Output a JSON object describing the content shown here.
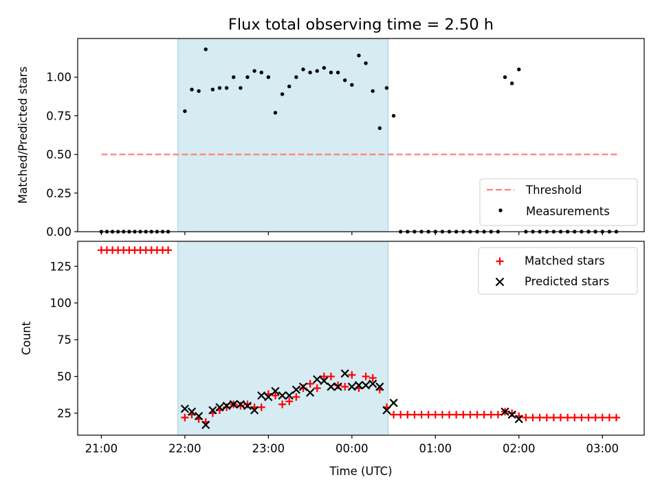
{
  "figure": {
    "title": "Flux total observing time = 2.50 h"
  },
  "chart_data": [
    {
      "type": "scatter",
      "title": "Flux total observing time = 2.50 h",
      "xlabel": "",
      "ylabel": "Matched/Predicted stars",
      "xlim": [
        "20:43",
        "03:30"
      ],
      "ylim": [
        0,
        1.25
      ],
      "yticks": [
        "0.00",
        "0.25",
        "0.50",
        "0.75",
        "1.00"
      ],
      "xticks": [
        "21:00",
        "22:00",
        "23:00",
        "00:00",
        "01:00",
        "02:00",
        "03:00"
      ],
      "shaded_interval": [
        "21:55",
        "00:26"
      ],
      "threshold": {
        "name": "Threshold",
        "value": 0.5,
        "x": [
          "21:00",
          "03:12"
        ],
        "color": "#ff7f7f",
        "style": "dashed"
      },
      "legend": {
        "placement": "lower right",
        "entries": [
          "Threshold",
          "Measurements"
        ]
      },
      "series": [
        {
          "name": "Measurements",
          "marker": "dot",
          "color": "#000000",
          "points": [
            [
              "21:00",
              0
            ],
            [
              "21:04",
              0
            ],
            [
              "21:08",
              0
            ],
            [
              "21:12",
              0
            ],
            [
              "21:16",
              0
            ],
            [
              "21:20",
              0
            ],
            [
              "21:24",
              0
            ],
            [
              "21:28",
              0
            ],
            [
              "21:32",
              0
            ],
            [
              "21:36",
              0
            ],
            [
              "21:40",
              0
            ],
            [
              "21:44",
              0
            ],
            [
              "21:48",
              0
            ],
            [
              "22:00",
              0.78
            ],
            [
              "22:05",
              0.92
            ],
            [
              "22:10",
              0.91
            ],
            [
              "22:15",
              1.18
            ],
            [
              "22:20",
              0.92
            ],
            [
              "22:25",
              0.93
            ],
            [
              "22:30",
              0.93
            ],
            [
              "22:35",
              1.0
            ],
            [
              "22:40",
              0.93
            ],
            [
              "22:45",
              1.0
            ],
            [
              "22:50",
              1.04
            ],
            [
              "22:55",
              1.03
            ],
            [
              "23:00",
              1.0
            ],
            [
              "23:05",
              0.77
            ],
            [
              "23:10",
              0.89
            ],
            [
              "23:15",
              0.94
            ],
            [
              "23:20",
              1.0
            ],
            [
              "23:25",
              1.05
            ],
            [
              "23:30",
              1.03
            ],
            [
              "23:35",
              1.04
            ],
            [
              "23:40",
              1.06
            ],
            [
              "23:45",
              1.03
            ],
            [
              "23:50",
              1.03
            ],
            [
              "23:55",
              0.98
            ],
            [
              "00:00",
              0.95
            ],
            [
              "00:05",
              1.14
            ],
            [
              "00:10",
              1.09
            ],
            [
              "00:15",
              0.91
            ],
            [
              "00:20",
              0.67
            ],
            [
              "00:25",
              0.93
            ],
            [
              "00:30",
              0.75
            ],
            [
              "00:35",
              0
            ],
            [
              "00:40",
              0
            ],
            [
              "00:45",
              0
            ],
            [
              "00:50",
              0
            ],
            [
              "00:55",
              0
            ],
            [
              "01:00",
              0
            ],
            [
              "01:05",
              0
            ],
            [
              "01:10",
              0
            ],
            [
              "01:15",
              0
            ],
            [
              "01:20",
              0
            ],
            [
              "01:25",
              0
            ],
            [
              "01:30",
              0
            ],
            [
              "01:35",
              0
            ],
            [
              "01:40",
              0
            ],
            [
              "01:45",
              0
            ],
            [
              "01:50",
              1.0
            ],
            [
              "01:55",
              0.96
            ],
            [
              "02:00",
              1.05
            ],
            [
              "02:05",
              0
            ],
            [
              "02:10",
              0
            ],
            [
              "02:15",
              0
            ],
            [
              "02:20",
              0
            ],
            [
              "02:25",
              0
            ],
            [
              "02:30",
              0
            ],
            [
              "02:35",
              0
            ],
            [
              "02:40",
              0
            ],
            [
              "02:45",
              0
            ],
            [
              "02:50",
              0
            ],
            [
              "02:55",
              0
            ],
            [
              "03:00",
              0
            ],
            [
              "03:05",
              0
            ],
            [
              "03:10",
              0
            ]
          ]
        }
      ]
    },
    {
      "type": "scatter",
      "title": "",
      "xlabel": "Time (UTC)",
      "ylabel": "Count",
      "xlim": [
        "20:43",
        "03:30"
      ],
      "ylim": [
        10,
        142
      ],
      "yticks": [
        "25",
        "50",
        "75",
        "100",
        "125"
      ],
      "xticks": [
        "21:00",
        "22:00",
        "23:00",
        "00:00",
        "01:00",
        "02:00",
        "03:00"
      ],
      "shaded_interval": [
        "21:55",
        "00:26"
      ],
      "legend": {
        "placement": "upper right",
        "entries": [
          "Matched stars",
          "Predicted stars"
        ]
      },
      "series": [
        {
          "name": "Matched stars",
          "marker": "plus",
          "color": "#ff0000",
          "points": [
            [
              "21:00",
              136
            ],
            [
              "21:04",
              136
            ],
            [
              "21:08",
              136
            ],
            [
              "21:12",
              136
            ],
            [
              "21:16",
              136
            ],
            [
              "21:20",
              136
            ],
            [
              "21:24",
              136
            ],
            [
              "21:28",
              136
            ],
            [
              "21:32",
              136
            ],
            [
              "21:36",
              136
            ],
            [
              "21:40",
              136
            ],
            [
              "21:44",
              136
            ],
            [
              "21:48",
              136
            ],
            [
              "22:00",
              22
            ],
            [
              "22:05",
              24
            ],
            [
              "22:10",
              21
            ],
            [
              "22:15",
              19
            ],
            [
              "22:20",
              25
            ],
            [
              "22:25",
              27
            ],
            [
              "22:30",
              29
            ],
            [
              "22:35",
              31
            ],
            [
              "22:40",
              30
            ],
            [
              "22:45",
              31
            ],
            [
              "22:50",
              29
            ],
            [
              "22:55",
              29
            ],
            [
              "23:00",
              38
            ],
            [
              "23:05",
              37
            ],
            [
              "23:10",
              31
            ],
            [
              "23:15",
              33
            ],
            [
              "23:20",
              36
            ],
            [
              "23:25",
              42
            ],
            [
              "23:30",
              45
            ],
            [
              "23:35",
              42
            ],
            [
              "23:40",
              50
            ],
            [
              "23:45",
              50
            ],
            [
              "23:50",
              44
            ],
            [
              "23:55",
              43
            ],
            [
              "00:00",
              51
            ],
            [
              "00:05",
              42
            ],
            [
              "00:10",
              50
            ],
            [
              "00:15",
              49
            ],
            [
              "00:20",
              41
            ],
            [
              "00:25",
              29
            ],
            [
              "00:30",
              24
            ],
            [
              "00:35",
              24
            ],
            [
              "00:40",
              24
            ],
            [
              "00:45",
              24
            ],
            [
              "00:50",
              24
            ],
            [
              "00:55",
              24
            ],
            [
              "01:00",
              24
            ],
            [
              "01:05",
              24
            ],
            [
              "01:10",
              24
            ],
            [
              "01:15",
              24
            ],
            [
              "01:20",
              24
            ],
            [
              "01:25",
              24
            ],
            [
              "01:30",
              24
            ],
            [
              "01:35",
              24
            ],
            [
              "01:40",
              24
            ],
            [
              "01:45",
              24
            ],
            [
              "01:50",
              26
            ],
            [
              "01:55",
              25
            ],
            [
              "02:00",
              23
            ],
            [
              "02:05",
              22
            ],
            [
              "02:10",
              22
            ],
            [
              "02:15",
              22
            ],
            [
              "02:20",
              22
            ],
            [
              "02:25",
              22
            ],
            [
              "02:30",
              22
            ],
            [
              "02:35",
              22
            ],
            [
              "02:40",
              22
            ],
            [
              "02:45",
              22
            ],
            [
              "02:50",
              22
            ],
            [
              "02:55",
              22
            ],
            [
              "03:00",
              22
            ],
            [
              "03:05",
              22
            ],
            [
              "03:10",
              22
            ]
          ]
        },
        {
          "name": "Predicted stars",
          "marker": "x",
          "color": "#000000",
          "points": [
            [
              "22:00",
              28
            ],
            [
              "22:05",
              26
            ],
            [
              "22:10",
              23
            ],
            [
              "22:15",
              17
            ],
            [
              "22:20",
              27
            ],
            [
              "22:25",
              29
            ],
            [
              "22:30",
              30
            ],
            [
              "22:35",
              31
            ],
            [
              "22:40",
              31
            ],
            [
              "22:45",
              30
            ],
            [
              "22:50",
              27
            ],
            [
              "22:55",
              37
            ],
            [
              "23:00",
              36
            ],
            [
              "23:05",
              40
            ],
            [
              "23:10",
              37
            ],
            [
              "23:15",
              37
            ],
            [
              "23:20",
              41
            ],
            [
              "23:25",
              43
            ],
            [
              "23:30",
              39
            ],
            [
              "23:35",
              48
            ],
            [
              "23:40",
              47
            ],
            [
              "23:45",
              43
            ],
            [
              "23:50",
              43
            ],
            [
              "23:55",
              52
            ],
            [
              "00:00",
              43
            ],
            [
              "00:05",
              44
            ],
            [
              "00:10",
              44
            ],
            [
              "00:15",
              45
            ],
            [
              "00:20",
              43
            ],
            [
              "00:25",
              27
            ],
            [
              "00:30",
              32
            ],
            [
              "01:50",
              26
            ],
            [
              "01:55",
              24
            ],
            [
              "02:00",
              21
            ]
          ]
        }
      ]
    }
  ]
}
